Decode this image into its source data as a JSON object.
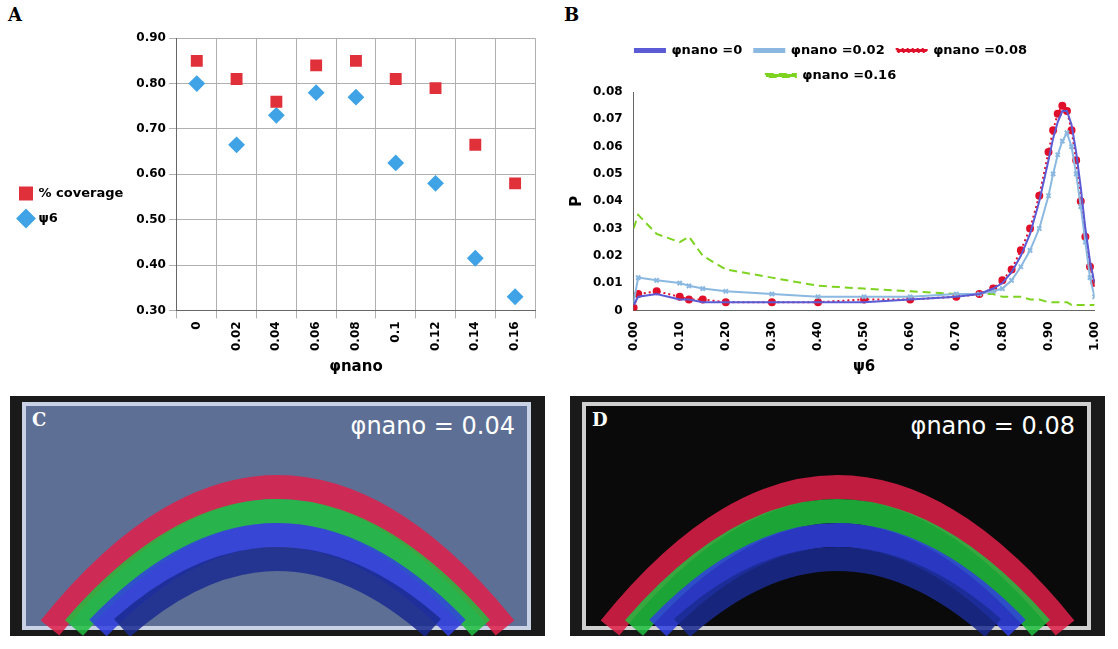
{
  "panel_letters": [
    "A",
    "B"
  ],
  "chart_data": [
    {
      "type": "scatter",
      "x_label": "φnano",
      "categories": [
        "0",
        "0.02",
        "0.04",
        "0.06",
        "0.08",
        "0.1",
        "0.12",
        "0.14",
        "0.16"
      ],
      "series": [
        {
          "name": "% coverage",
          "color": "#e0313b",
          "marker": "square",
          "values": [
            0.85,
            0.81,
            0.76,
            0.84,
            0.85,
            0.81,
            0.79,
            0.665,
            0.58
          ]
        },
        {
          "name": "ψ6",
          "color": "#3fa3e6",
          "marker": "diamond",
          "values": [
            0.8,
            0.665,
            0.73,
            0.78,
            0.77,
            0.625,
            0.58,
            0.415,
            0.33
          ]
        }
      ],
      "ylim": [
        0.3,
        0.9
      ],
      "yticks": [
        {
          "value": 0.3,
          "label": "0.30"
        },
        {
          "value": 0.4,
          "label": "0.40"
        },
        {
          "value": 0.5,
          "label": "0.50"
        },
        {
          "value": 0.6,
          "label": "0.60"
        },
        {
          "value": 0.7,
          "label": "0.70"
        },
        {
          "value": 0.8,
          "label": "0.80"
        },
        {
          "value": 0.9,
          "label": "0.90"
        }
      ],
      "grid": true,
      "legend": "left"
    },
    {
      "type": "line",
      "x_label": "ψ6",
      "y_label": "P",
      "x": [
        0,
        0.01,
        0.05,
        0.1,
        0.12,
        0.15,
        0.2,
        0.3,
        0.4,
        0.5,
        0.6,
        0.7,
        0.75,
        0.78,
        0.8,
        0.82,
        0.84,
        0.86,
        0.88,
        0.9,
        0.91,
        0.92,
        0.93,
        0.94,
        0.95,
        0.96,
        0.97,
        0.98,
        0.99,
        1.0
      ],
      "series": [
        {
          "name": "φnano =0",
          "color": "#5b5bd6",
          "line_style": "solid",
          "marker": "none",
          "values": [
            0.002,
            0.005,
            0.006,
            0.004,
            0.004,
            0.003,
            0.003,
            0.003,
            0.003,
            0.003,
            0.004,
            0.005,
            0.006,
            0.008,
            0.01,
            0.014,
            0.02,
            0.028,
            0.04,
            0.055,
            0.063,
            0.069,
            0.073,
            0.073,
            0.068,
            0.058,
            0.045,
            0.03,
            0.018,
            0.01
          ]
        },
        {
          "name": "φnano =0.02",
          "color": "#8ab8e0",
          "line_style": "solid",
          "marker": "cross",
          "values": [
            0.003,
            0.012,
            0.011,
            0.01,
            0.009,
            0.008,
            0.007,
            0.006,
            0.005,
            0.005,
            0.005,
            0.006,
            0.006,
            0.007,
            0.008,
            0.011,
            0.016,
            0.022,
            0.03,
            0.042,
            0.05,
            0.057,
            0.062,
            0.065,
            0.06,
            0.05,
            0.038,
            0.025,
            0.012,
            0.005
          ]
        },
        {
          "name": "φnano =0.08",
          "color": "#e0102a",
          "line_style": "dotted",
          "marker": "circle",
          "values": [
            0.001,
            0.006,
            0.007,
            0.005,
            0.004,
            0.004,
            0.003,
            0.003,
            0.003,
            0.004,
            0.004,
            0.005,
            0.006,
            0.008,
            0.011,
            0.015,
            0.022,
            0.03,
            0.042,
            0.058,
            0.066,
            0.072,
            0.075,
            0.073,
            0.066,
            0.055,
            0.04,
            0.027,
            0.016,
            0.01
          ]
        },
        {
          "name": "φnano =0.16",
          "color": "#7ed321",
          "line_style": "dashed",
          "marker": "none",
          "values": [
            0.03,
            0.035,
            0.028,
            0.025,
            0.027,
            0.02,
            0.015,
            0.012,
            0.009,
            0.008,
            0.007,
            0.006,
            0.006,
            0.006,
            0.005,
            0.005,
            0.005,
            0.004,
            0.004,
            0.003,
            0.003,
            0.003,
            0.003,
            0.003,
            0.002,
            0.002,
            0.002,
            0.002,
            0.002,
            0.002
          ]
        }
      ],
      "xlim": [
        0,
        1
      ],
      "xticks": [
        {
          "value": 0,
          "label": "0.00"
        },
        {
          "value": 0.1,
          "label": "0.10"
        },
        {
          "value": 0.2,
          "label": "0.20"
        },
        {
          "value": 0.3,
          "label": "0.30"
        },
        {
          "value": 0.4,
          "label": "0.40"
        },
        {
          "value": 0.5,
          "label": "0.50"
        },
        {
          "value": 0.6,
          "label": "0.60"
        },
        {
          "value": 0.7,
          "label": "0.70"
        },
        {
          "value": 0.8,
          "label": "0.80"
        },
        {
          "value": 0.9,
          "label": "0.90"
        },
        {
          "value": 1,
          "label": "1.00"
        }
      ],
      "ylim": [
        0,
        0.08
      ],
      "yticks": [
        0,
        0.01,
        0.02,
        0.03,
        0.04,
        0.05,
        0.06,
        0.07,
        0.08
      ],
      "grid": false,
      "legend": "top"
    }
  ],
  "photos": [
    {
      "letter": "C",
      "label": "φnano = 0.04"
    },
    {
      "letter": "D",
      "label": "φnano = 0.08"
    }
  ]
}
